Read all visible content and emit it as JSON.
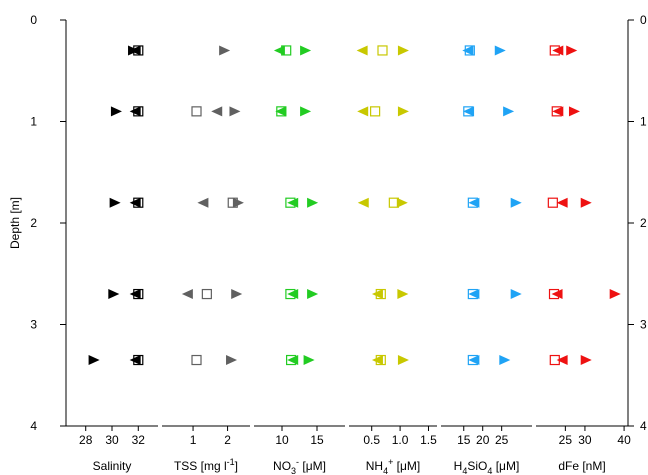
{
  "chart_data": {
    "type": "scatter",
    "y_axis": {
      "title": "Depth [m]",
      "ylim": [
        0,
        4
      ],
      "ticks": [
        0,
        1,
        2,
        3,
        4
      ],
      "inverted": true,
      "right_ticks": [
        "0",
        "1",
        "2",
        "3",
        "4"
      ]
    },
    "depths": [
      0.3,
      0.9,
      1.8,
      2.7,
      3.35
    ],
    "marker_legend": {
      "square": "open square",
      "left_triangle": "left-pointing triangle",
      "right_triangle": "right-pointing triangle"
    },
    "panels": [
      {
        "xlabel": [
          "Salinity"
        ],
        "xlim": [
          26.5,
          33.5
        ],
        "ticks": [
          28,
          30,
          32
        ],
        "tick_labels": [
          "28",
          "30",
          "32"
        ],
        "color": "#000000",
        "series": [
          {
            "marker": "square",
            "values": [
              32,
              32,
              32,
              32,
              32
            ]
          },
          {
            "marker": "left_triangle",
            "values": [
              31.8,
              31.8,
              31.8,
              31.8,
              31.8
            ]
          },
          {
            "marker": "right_triangle",
            "values": [
              31.6,
              30.3,
              30.2,
              30.1,
              28.6
            ]
          }
        ]
      },
      {
        "xlabel": [
          "TSS [mg l",
          "-1",
          "]"
        ],
        "xlim": [
          0.1,
          2.65
        ],
        "ticks": [
          1,
          2
        ],
        "tick_labels": [
          "1",
          "2"
        ],
        "color": "#606060",
        "series": [
          {
            "marker": "square",
            "values": [
              null,
              1.1,
              2.15,
              1.4,
              1.1
            ]
          },
          {
            "marker": "left_triangle",
            "values": [
              null,
              1.7,
              1.3,
              0.85,
              null
            ]
          },
          {
            "marker": "right_triangle",
            "values": [
              1.9,
              2.2,
              2.3,
              2.25,
              2.1
            ]
          }
        ]
      },
      {
        "xlabel": [
          "NO",
          "3",
          "-",
          " [μM]"
        ],
        "xlim": [
          6,
          19
        ],
        "ticks": [
          10,
          15
        ],
        "tick_labels": [
          "10",
          "15"
        ],
        "color": "#22cc22",
        "series": [
          {
            "marker": "square",
            "values": [
              10.6,
              9.9,
              11.2,
              11.2,
              11.3
            ]
          },
          {
            "marker": "left_triangle",
            "values": [
              9.7,
              9.9,
              11.6,
              11.6,
              11.6
            ]
          },
          {
            "marker": "right_triangle",
            "values": [
              13.3,
              13.3,
              14.3,
              14.3,
              13.8
            ]
          }
        ]
      },
      {
        "xlabel": [
          "NH",
          "4",
          "+",
          " [μM]"
        ],
        "xlim": [
          0.1,
          1.65
        ],
        "ticks": [
          0.5,
          1.0,
          1.5
        ],
        "tick_labels": [
          "0.5",
          "1.0",
          "1.5"
        ],
        "color": "#c8c800",
        "series": [
          {
            "marker": "square",
            "values": [
              0.69,
              0.56,
              0.89,
              0.66,
              0.66
            ]
          },
          {
            "marker": "left_triangle",
            "values": [
              0.34,
              0.35,
              0.36,
              0.61,
              0.61
            ]
          },
          {
            "marker": "right_triangle",
            "values": [
              1.05,
              1.05,
              1.03,
              1.04,
              1.05
            ]
          }
        ]
      },
      {
        "xlabel": [
          "H",
          "4",
          "",
          "SiO",
          "4",
          "",
          " [μM]"
        ],
        "xlim": [
          9,
          33
        ],
        "ticks": [
          15,
          20,
          25
        ],
        "tick_labels": [
          "15",
          "20",
          "25"
        ],
        "color": "#1fa3f5",
        "series": [
          {
            "marker": "square",
            "values": [
              16.6,
              16.2,
              17.4,
              17.4,
              17.4
            ]
          },
          {
            "marker": "left_triangle",
            "values": [
              16.2,
              16.4,
              17.8,
              17.8,
              17.8
            ]
          },
          {
            "marker": "right_triangle",
            "values": [
              24.5,
              26.7,
              28.7,
              28.7,
              25.7
            ]
          }
        ]
      },
      {
        "xlabel": [
          "dFe [nM]"
        ],
        "xlim": [
          17.5,
          41
        ],
        "ticks": [
          25,
          30,
          40
        ],
        "tick_labels": [
          "25",
          "30",
          "40"
        ],
        "color": "#ee1111",
        "series": [
          {
            "marker": "square",
            "values": [
              22.3,
              22.8,
              21.8,
              22.1,
              22.3
            ]
          },
          {
            "marker": "left_triangle",
            "values": [
              23.2,
              23.2,
              24.3,
              23.0,
              24.3
            ]
          },
          {
            "marker": "right_triangle",
            "values": [
              26.5,
              27.2,
              30.2,
              37.6,
              30.2
            ]
          }
        ]
      }
    ]
  }
}
